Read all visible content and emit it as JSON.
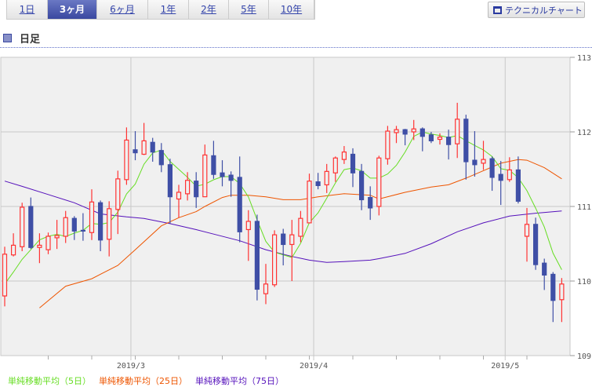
{
  "tabs": [
    {
      "label": "1日"
    },
    {
      "label": "3ヶ月",
      "active": true
    },
    {
      "label": "6ヶ月"
    },
    {
      "label": "1年"
    },
    {
      "label": "2年"
    },
    {
      "label": "5年"
    },
    {
      "label": "10年"
    }
  ],
  "tech_button": {
    "label": "テクニカルチャート",
    "icon": "window-icon"
  },
  "heading": {
    "label": "日足",
    "icon": "square-icon"
  },
  "legend": [
    {
      "label": "単純移動平均（5日）",
      "color": "#66dd22"
    },
    {
      "label": "単純移動平均（25日）",
      "color": "#ee5500"
    },
    {
      "label": "単純移動平均（75日）",
      "color": "#5511bb"
    }
  ],
  "colors": {
    "up": "#ff3333",
    "down": "#3f4fa6",
    "grid": "#c8c8c8",
    "plot_bg": "#f0f0f0"
  },
  "chart_data": {
    "type": "candlestick",
    "ylim": [
      109,
      113
    ],
    "yticks": [
      "113",
      "112",
      "111",
      "110",
      "109"
    ],
    "month_labels": [
      {
        "label": "2019/3",
        "after_index": 14
      },
      {
        "label": "2019/4",
        "after_index": 35
      },
      {
        "label": "2019/5",
        "after_index": 57
      }
    ],
    "week_tick_every": 5,
    "ohlc": [
      [
        109.8,
        110.46,
        109.66,
        110.36
      ],
      [
        110.35,
        110.64,
        110.33,
        110.48
      ],
      [
        110.46,
        111.05,
        110.4,
        110.99
      ],
      [
        111.0,
        111.12,
        110.43,
        110.45
      ],
      [
        110.45,
        110.64,
        110.24,
        110.48
      ],
      [
        110.42,
        110.65,
        110.36,
        110.6
      ],
      [
        110.58,
        110.82,
        110.43,
        110.61
      ],
      [
        110.6,
        110.94,
        110.51,
        110.85
      ],
      [
        110.84,
        110.87,
        110.55,
        110.67
      ],
      [
        110.68,
        110.91,
        110.54,
        110.67
      ],
      [
        110.65,
        111.23,
        110.55,
        111.06
      ],
      [
        111.05,
        111.08,
        110.4,
        110.55
      ],
      [
        110.56,
        111.07,
        110.33,
        110.97
      ],
      [
        110.96,
        111.48,
        110.63,
        111.37
      ],
      [
        111.36,
        112.06,
        111.29,
        111.89
      ],
      [
        111.76,
        112.01,
        111.62,
        111.72
      ],
      [
        111.7,
        112.12,
        111.69,
        111.88
      ],
      [
        111.86,
        111.92,
        111.6,
        111.73
      ],
      [
        111.75,
        111.85,
        111.46,
        111.56
      ],
      [
        111.56,
        111.64,
        110.77,
        111.13
      ],
      [
        111.1,
        111.29,
        110.85,
        111.19
      ],
      [
        111.17,
        111.46,
        111.08,
        111.35
      ],
      [
        111.34,
        111.46,
        110.98,
        111.13
      ],
      [
        111.13,
        111.83,
        111.13,
        111.69
      ],
      [
        111.68,
        111.88,
        111.37,
        111.43
      ],
      [
        111.45,
        111.62,
        111.27,
        111.4
      ],
      [
        111.42,
        111.47,
        111.13,
        111.35
      ],
      [
        111.39,
        111.67,
        110.52,
        110.66
      ],
      [
        110.69,
        110.95,
        110.27,
        110.8
      ],
      [
        110.8,
        110.89,
        109.74,
        109.89
      ],
      [
        109.83,
        110.23,
        109.69,
        109.96
      ],
      [
        109.95,
        110.68,
        109.92,
        110.62
      ],
      [
        110.63,
        110.7,
        110.21,
        110.49
      ],
      [
        110.49,
        110.82,
        110.0,
        110.62
      ],
      [
        110.6,
        110.94,
        110.52,
        110.84
      ],
      [
        110.78,
        111.44,
        110.78,
        111.34
      ],
      [
        111.33,
        111.45,
        111.23,
        111.28
      ],
      [
        111.29,
        111.57,
        111.18,
        111.47
      ],
      [
        111.45,
        111.67,
        111.33,
        111.65
      ],
      [
        111.63,
        111.81,
        111.57,
        111.73
      ],
      [
        111.7,
        111.78,
        111.26,
        111.45
      ],
      [
        111.47,
        111.57,
        110.95,
        111.09
      ],
      [
        111.12,
        111.27,
        110.82,
        110.98
      ],
      [
        111.0,
        111.68,
        110.88,
        111.65
      ],
      [
        111.64,
        112.08,
        111.56,
        112.01
      ],
      [
        111.99,
        112.08,
        111.85,
        112.03
      ],
      [
        112.03,
        112.04,
        111.82,
        111.97
      ],
      [
        112.0,
        112.16,
        111.89,
        112.04
      ],
      [
        112.04,
        112.06,
        111.74,
        111.94
      ],
      [
        111.96,
        112.0,
        111.85,
        111.88
      ],
      [
        111.9,
        111.98,
        111.83,
        111.93
      ],
      [
        111.93,
        112.03,
        111.63,
        111.83
      ],
      [
        111.84,
        112.39,
        111.65,
        112.17
      ],
      [
        112.17,
        112.23,
        111.36,
        111.6
      ],
      [
        111.62,
        112.01,
        111.4,
        111.56
      ],
      [
        111.58,
        111.88,
        111.49,
        111.63
      ],
      [
        111.64,
        111.67,
        111.21,
        111.39
      ],
      [
        111.43,
        111.61,
        111.02,
        111.35
      ],
      [
        111.36,
        111.66,
        111.33,
        111.49
      ],
      [
        111.49,
        111.67,
        111.04,
        111.07
      ],
      [
        110.6,
        110.98,
        110.26,
        110.76
      ],
      [
        110.76,
        110.85,
        110.15,
        110.22
      ],
      [
        110.24,
        110.3,
        109.88,
        110.08
      ],
      [
        110.09,
        110.12,
        109.45,
        109.74
      ],
      [
        109.75,
        110.04,
        109.45,
        109.96
      ]
    ],
    "ma5_initial": [
      109.96,
      110.12,
      110.29,
      110.42
    ],
    "ma25": [
      [
        4,
        109.64
      ],
      [
        7,
        109.93
      ],
      [
        10,
        110.03
      ],
      [
        13,
        110.21
      ],
      [
        15,
        110.42
      ],
      [
        18,
        110.74
      ],
      [
        20,
        110.85
      ],
      [
        22,
        110.93
      ],
      [
        23,
        111.0
      ],
      [
        25,
        111.12
      ],
      [
        26,
        111.15
      ],
      [
        28,
        111.15
      ],
      [
        30,
        111.13
      ],
      [
        32,
        111.09
      ],
      [
        34,
        111.09
      ],
      [
        36,
        111.13
      ],
      [
        39,
        111.17
      ],
      [
        42,
        111.15
      ],
      [
        43,
        111.1
      ],
      [
        46,
        111.19
      ],
      [
        49,
        111.26
      ],
      [
        51,
        111.29
      ],
      [
        53,
        111.38
      ],
      [
        55,
        111.48
      ],
      [
        57,
        111.58
      ],
      [
        59,
        111.63
      ],
      [
        60,
        111.62
      ],
      [
        62,
        111.52
      ],
      [
        64,
        111.37
      ]
    ],
    "ma75": [
      [
        0,
        111.34
      ],
      [
        2,
        111.27
      ],
      [
        5,
        111.16
      ],
      [
        8,
        111.05
      ],
      [
        11,
        110.9
      ],
      [
        14,
        110.86
      ],
      [
        16,
        110.84
      ],
      [
        19,
        110.77
      ],
      [
        22,
        110.69
      ],
      [
        24,
        110.63
      ],
      [
        27,
        110.54
      ],
      [
        30,
        110.42
      ],
      [
        33,
        110.33
      ],
      [
        35,
        110.28
      ],
      [
        37,
        110.25
      ],
      [
        39,
        110.26
      ],
      [
        42,
        110.28
      ],
      [
        43,
        110.3
      ],
      [
        46,
        110.37
      ],
      [
        49,
        110.5
      ],
      [
        52,
        110.66
      ],
      [
        55,
        110.78
      ],
      [
        58,
        110.87
      ],
      [
        61,
        110.91
      ],
      [
        64,
        110.94
      ]
    ]
  }
}
